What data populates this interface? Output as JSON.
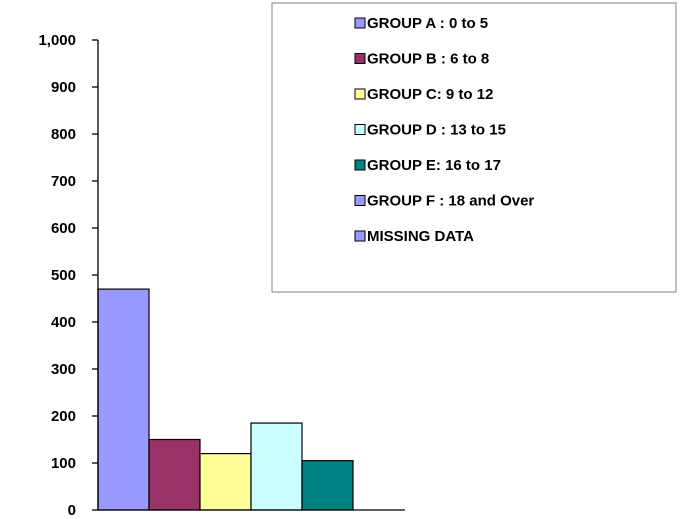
{
  "chart_data": {
    "type": "bar",
    "title": "",
    "xlabel": "",
    "ylabel": "",
    "ylim": [
      0,
      1000
    ],
    "y_ticks": [
      0,
      100,
      200,
      300,
      400,
      500,
      600,
      700,
      800,
      900,
      1000
    ],
    "y_tick_labels": [
      "0",
      "100",
      "200",
      "300",
      "400",
      "500",
      "600",
      "700",
      "800",
      "900",
      "1,000"
    ],
    "grid": false,
    "legend_position": "top-right",
    "series": [
      {
        "name": "GROUP A : 0 to 5",
        "values": [
          470
        ],
        "color": "#9999ff"
      },
      {
        "name": "GROUP B : 6 to 8",
        "values": [
          150
        ],
        "color": "#993366"
      },
      {
        "name": "GROUP C: 9 to 12",
        "values": [
          120
        ],
        "color": "#ffff99"
      },
      {
        "name": "GROUP D : 13 to 15",
        "values": [
          185
        ],
        "color": "#ccffff"
      },
      {
        "name": "GROUP E: 16 to 17",
        "values": [
          105
        ],
        "color": "#008080"
      },
      {
        "name": "GROUP F : 18 and Over",
        "values": [
          0
        ],
        "color": "#9999ff"
      },
      {
        "name": "MISSING DATA",
        "values": [
          0
        ],
        "color": "#9999ff"
      }
    ]
  }
}
